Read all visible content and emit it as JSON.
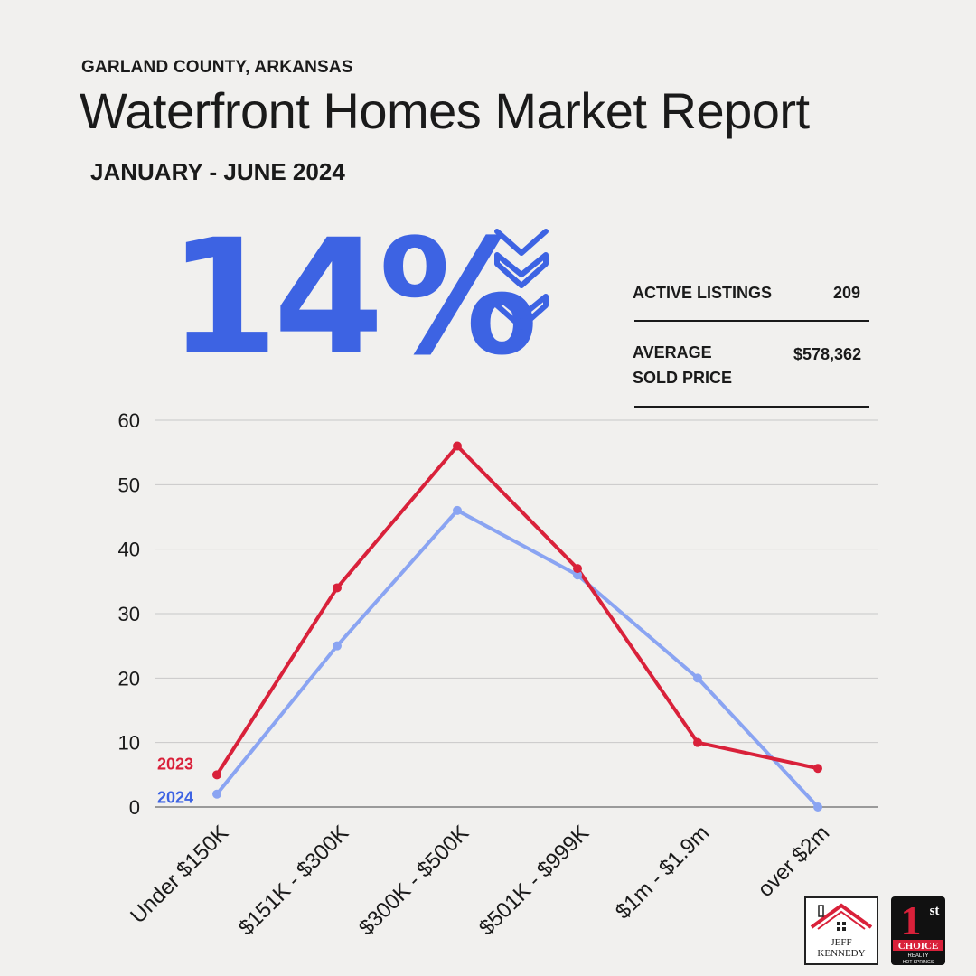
{
  "header": {
    "region": "GARLAND COUNTY, ARKANSAS",
    "title": "Waterfront Homes Market Report",
    "period": "JANUARY - JUNE 2024"
  },
  "highlight": {
    "value": "14%",
    "direction": "down",
    "color": "#3d63e3"
  },
  "stats": {
    "active_label": "ACTIVE LISTINGS",
    "active_value": "209",
    "avg_label_1": "AVERAGE",
    "avg_label_2": "SOLD PRICE",
    "avg_value": "$578,362"
  },
  "chart_data": {
    "type": "line",
    "title": "",
    "xlabel": "",
    "ylabel": "",
    "categories": [
      "Under $150K",
      "$151K - $300K",
      "$300K - $500K",
      "$501K - $999K",
      "$1m - $1.9m",
      "over $2m"
    ],
    "ylim": [
      0,
      60
    ],
    "yticks": [
      0,
      10,
      20,
      30,
      40,
      50,
      60
    ],
    "grid": true,
    "series": [
      {
        "name": "2023",
        "values": [
          5,
          34,
          56,
          37,
          10,
          6
        ],
        "color": "#d9213a"
      },
      {
        "name": "2024",
        "values": [
          2,
          25,
          46,
          36,
          20,
          0
        ],
        "color": "#8aa4f2"
      }
    ],
    "series_label_colors": {
      "2023": "#d9213a",
      "2024": "#3d63e3"
    }
  },
  "logos": {
    "agent_first": "JEFF",
    "agent_last": "KENNEDY",
    "brand_main": "1",
    "brand_sup": "st",
    "brand_line1": "CHOICE",
    "brand_line2": "REALTY",
    "brand_line3": "HOT SPRINGS",
    "brand_color": "#d9213a"
  }
}
